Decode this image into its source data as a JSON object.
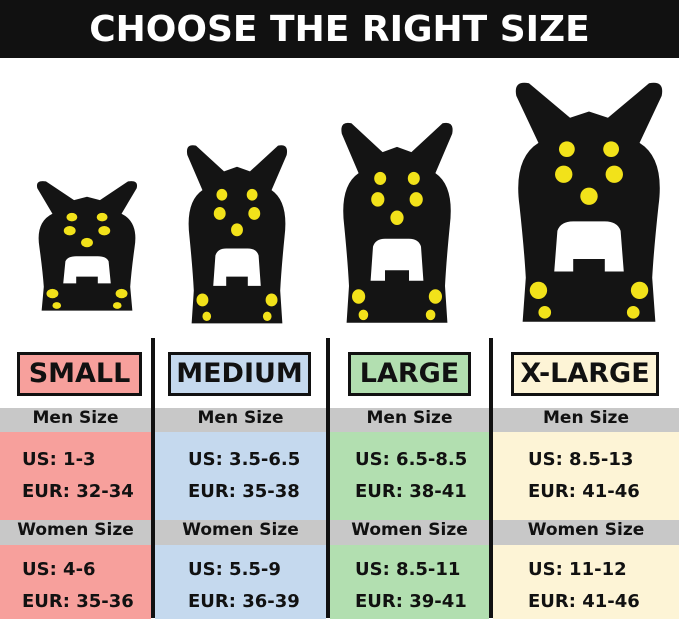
{
  "title": "CHOOSE THE RIGHT SIZE",
  "colors": {
    "gray_header": "#c8c8c8",
    "divider": "#111111",
    "cleat_studs": "#f2e21a"
  },
  "sizes": [
    {
      "label": "SMALL",
      "color": "#f7a09c",
      "men_heading": "Men Size",
      "men_us": "US: 1-3",
      "men_eur": "EUR: 32-34",
      "women_heading": "Women Size",
      "women_us": "US: 4-6",
      "women_eur": "EUR: 35-36"
    },
    {
      "label": "MEDIUM",
      "color": "#c5d9ee",
      "men_heading": "Men Size",
      "men_us": "US: 3.5-6.5",
      "men_eur": "EUR: 35-38",
      "women_heading": "Women Size",
      "women_us": "US: 5.5-9",
      "women_eur": "EUR: 36-39"
    },
    {
      "label": "LARGE",
      "color": "#b2dfb0",
      "men_heading": "Men Size",
      "men_us": "US: 6.5-8.5",
      "men_eur": "EUR: 38-41",
      "women_heading": "Women Size",
      "women_us": "US: 8.5-11",
      "women_eur": "EUR: 39-41"
    },
    {
      "label": "X-LARGE",
      "color": "#fdf4d6",
      "men_heading": "Men Size",
      "men_us": "US: 8.5-13",
      "men_eur": "EUR: 41-46",
      "women_heading": "Women Size",
      "women_us": "US: 11-12",
      "women_eur": "EUR: 41-46"
    }
  ]
}
